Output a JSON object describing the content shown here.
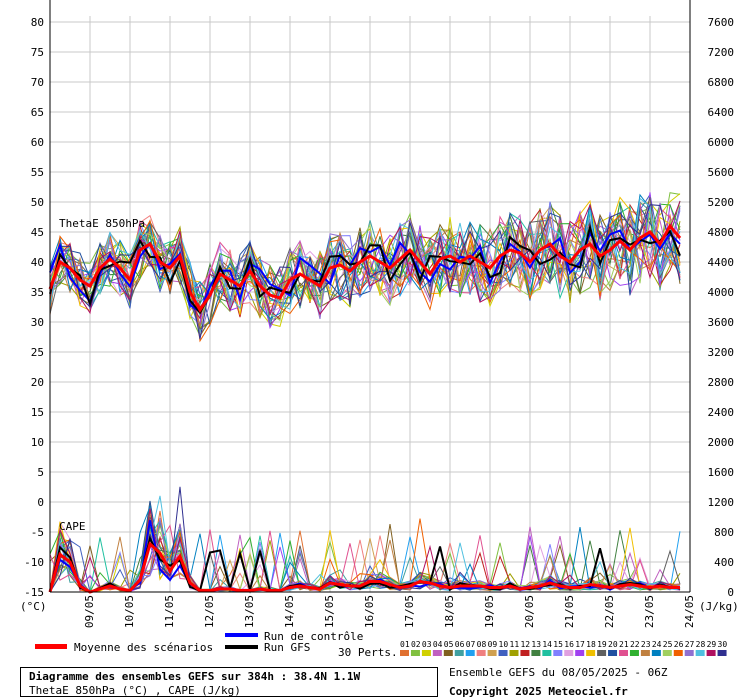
{
  "chart_data": {
    "type": "line",
    "left_axis": {
      "ticks": [
        "80",
        "75",
        "70",
        "65",
        "60",
        "55",
        "50",
        "45",
        "40",
        "35",
        "30",
        "25",
        "20",
        "15",
        "10",
        "5",
        "0",
        "-5",
        "-10",
        "-15"
      ],
      "unit": "(°C)"
    },
    "right_axis": {
      "ticks": [
        "7600",
        "7200",
        "6800",
        "6400",
        "6000",
        "5600",
        "5200",
        "4800",
        "4400",
        "4000",
        "3600",
        "3200",
        "2800",
        "2400",
        "2000",
        "1600",
        "1200",
        "800",
        "400",
        "0"
      ],
      "unit": "(J/kg)"
    },
    "x_dates": [
      "09/05",
      "10/05",
      "11/05",
      "12/05",
      "13/05",
      "14/05",
      "15/05",
      "16/05",
      "17/05",
      "18/05",
      "19/05",
      "20/05",
      "21/05",
      "22/05",
      "23/05",
      "24/05"
    ],
    "x_ticks_per_day": 4,
    "panels": [
      {
        "name": "ThetaE 850hPa",
        "unit": "°C"
      },
      {
        "name": "CAPE",
        "unit": "J/kg"
      }
    ],
    "theta_e_mean": [
      35.5,
      40,
      39,
      37,
      36,
      39,
      40.5,
      39,
      37,
      42,
      43,
      40,
      39,
      41,
      35,
      32,
      34.5,
      38,
      37,
      36,
      38.5,
      36,
      34.5,
      34,
      37,
      38,
      37,
      36,
      39,
      39.5,
      38.5,
      40,
      41,
      40,
      39,
      40.5,
      42,
      40,
      38,
      40.5,
      41,
      40,
      41,
      40,
      39,
      41,
      42,
      41.5,
      40,
      42,
      43,
      41,
      40,
      42,
      43,
      41,
      42,
      43.5,
      42,
      44,
      45,
      43,
      46,
      44
    ],
    "theta_e_spread": 4,
    "cape_mean_jkg": [
      0,
      250,
      200,
      40,
      0,
      20,
      40,
      20,
      10,
      80,
      320,
      260,
      140,
      240,
      60,
      10,
      10,
      20,
      20,
      10,
      10,
      20,
      10,
      10,
      30,
      40,
      30,
      20,
      60,
      50,
      40,
      40,
      70,
      70,
      50,
      30,
      40,
      70,
      60,
      40,
      30,
      40,
      40,
      40,
      30,
      30,
      40,
      20,
      30,
      40,
      60,
      40,
      30,
      30,
      50,
      40,
      30,
      40,
      50,
      40,
      30,
      40,
      30,
      30
    ],
    "legend": {
      "mean_label": "Moyenne des scénarios",
      "mean_color": "#ff0000",
      "control_label": "Run de contrôle",
      "control_color": "#0000ff",
      "gfs_label": "Run GFS",
      "gfs_color": "#000000",
      "perts_label": "30 Perts.",
      "pert_ids": [
        "01",
        "02",
        "03",
        "04",
        "05",
        "06",
        "07",
        "08",
        "09",
        "10",
        "11",
        "12",
        "13",
        "14",
        "15",
        "16",
        "17",
        "18",
        "19",
        "20",
        "21",
        "22",
        "23",
        "24",
        "25",
        "26",
        "27",
        "28",
        "29",
        "30"
      ],
      "pert_colors": [
        "#e07030",
        "#80c040",
        "#d0d000",
        "#c060c0",
        "#806020",
        "#40a0a0",
        "#20a0f0",
        "#f08080",
        "#d0a050",
        "#4060c0",
        "#a0a000",
        "#c02020",
        "#408040",
        "#20c0a0",
        "#8080ff",
        "#e0a0e0",
        "#a040f0",
        "#f0c000",
        "#606060",
        "#2050a0",
        "#e05090",
        "#30b030",
        "#c08040",
        "#0080c0",
        "#a0d060",
        "#f06000",
        "#9070d0",
        "#50c0e0",
        "#b01060",
        "#303090"
      ]
    }
  },
  "title": {
    "line1": "Diagramme des ensembles GEFS sur 384h : 38.4N 1.1W",
    "line2": "ThetaE 850hPa (°C) , CAPE (J/kg)"
  },
  "ensemble_date": "Ensemble GEFS du 08/05/2025 - 06Z",
  "copyright": "Copyright 2025 Meteociel.fr"
}
